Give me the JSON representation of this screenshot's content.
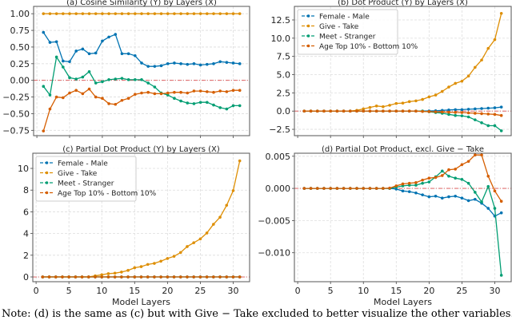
{
  "caption": "Note: (d) is the same as (c) but with Give − Take excluded to better visualize the other variables.",
  "colors": {
    "Female - Male": "#0173b2",
    "Give - Take": "#de8f05",
    "Meet - Stranger": "#029e73",
    "Age Top 10% - Bottom 10%": "#d55e00",
    "zero_line": "#d62728"
  },
  "chart_data": [
    {
      "id": "a",
      "type": "line",
      "title": "(a) Cosine Similarity (Y) by Layers (X)",
      "xlabel": "",
      "ylabel": "",
      "xlim": [
        -0.5,
        32.5
      ],
      "ylim": [
        -0.83,
        1.11
      ],
      "grid": true,
      "legend": null,
      "xticks": [
        0,
        5,
        10,
        15,
        20,
        25,
        30
      ],
      "xtick_labels_shown": false,
      "yticks": [
        -0.75,
        -0.5,
        -0.25,
        0,
        0.25,
        0.5,
        0.75,
        1.0
      ],
      "ytick_labels": [
        "−0.75",
        "−0.50",
        "−0.25",
        "0.00",
        "0.25",
        "0.50",
        "0.75",
        "1.00"
      ],
      "x": [
        1,
        2,
        3,
        4,
        5,
        6,
        7,
        8,
        9,
        10,
        11,
        12,
        13,
        14,
        15,
        16,
        17,
        18,
        19,
        20,
        21,
        22,
        23,
        24,
        25,
        26,
        27,
        28,
        29,
        30,
        31
      ],
      "series": [
        {
          "name": "Female - Male",
          "values": [
            0.72,
            0.57,
            0.58,
            0.29,
            0.28,
            0.44,
            0.47,
            0.4,
            0.41,
            0.59,
            0.65,
            0.69,
            0.4,
            0.4,
            0.37,
            0.26,
            0.21,
            0.21,
            0.22,
            0.25,
            0.26,
            0.25,
            0.24,
            0.25,
            0.23,
            0.24,
            0.25,
            0.28,
            0.27,
            0.26,
            0.25
          ]
        },
        {
          "name": "Give - Take",
          "values": [
            1,
            1,
            1,
            1,
            1,
            1,
            1,
            1,
            1,
            1,
            1,
            1,
            1,
            1,
            1,
            1,
            1,
            1,
            1,
            1,
            1,
            1,
            1,
            1,
            1,
            1,
            1,
            1,
            1,
            1,
            1
          ]
        },
        {
          "name": "Meet - Stranger",
          "values": [
            -0.09,
            -0.22,
            0.35,
            0.2,
            0.04,
            0.02,
            0.05,
            0.13,
            -0.04,
            -0.02,
            0.01,
            0.02,
            0.03,
            0.01,
            0.01,
            0.01,
            -0.04,
            -0.1,
            -0.19,
            -0.22,
            -0.27,
            -0.31,
            -0.34,
            -0.35,
            -0.33,
            -0.33,
            -0.37,
            -0.41,
            -0.43,
            -0.38,
            -0.38
          ]
        },
        {
          "name": "Age Top 10% - Bottom 10%",
          "values": [
            -0.76,
            -0.43,
            -0.25,
            -0.26,
            -0.19,
            -0.15,
            -0.2,
            -0.13,
            -0.25,
            -0.27,
            -0.35,
            -0.36,
            -0.3,
            -0.27,
            -0.21,
            -0.19,
            -0.18,
            -0.2,
            -0.2,
            -0.19,
            -0.18,
            -0.18,
            -0.19,
            -0.16,
            -0.16,
            -0.17,
            -0.18,
            -0.16,
            -0.17,
            -0.15,
            -0.15
          ]
        }
      ]
    },
    {
      "id": "b",
      "type": "line",
      "title": "(b) Dot Product (Y) by Layers (X)",
      "xlabel": "",
      "ylabel": "",
      "xlim": [
        -0.5,
        32.5
      ],
      "ylim": [
        -3.37,
        14.36
      ],
      "grid": true,
      "legend": "top-left",
      "xticks": [
        0,
        5,
        10,
        15,
        20,
        25,
        30
      ],
      "xtick_labels_shown": false,
      "yticks": [
        -2.5,
        0,
        2.5,
        5,
        7.5,
        10,
        12.5
      ],
      "ytick_labels": [
        "−2.5",
        "0.0",
        "2.5",
        "5.0",
        "7.5",
        "10.0",
        "12.5"
      ],
      "x": [
        1,
        2,
        3,
        4,
        5,
        6,
        7,
        8,
        9,
        10,
        11,
        12,
        13,
        14,
        15,
        16,
        17,
        18,
        19,
        20,
        21,
        22,
        23,
        24,
        25,
        26,
        27,
        28,
        29,
        30,
        31
      ],
      "series": [
        {
          "name": "Female - Male",
          "values": [
            0,
            0,
            0,
            0,
            0,
            0,
            0,
            0,
            0,
            0,
            0,
            0,
            0,
            0,
            0,
            0,
            0,
            0,
            0,
            0.02,
            0.05,
            0.1,
            0.15,
            0.2,
            0.2,
            0.25,
            0.3,
            0.35,
            0.4,
            0.45,
            0.55
          ]
        },
        {
          "name": "Give - Take",
          "values": [
            0,
            0,
            0,
            0,
            0,
            0,
            0,
            0,
            0.1,
            0.3,
            0.5,
            0.7,
            0.6,
            0.8,
            1.05,
            1.1,
            1.3,
            1.4,
            1.6,
            1.95,
            2.2,
            2.7,
            3.3,
            3.8,
            4.1,
            4.8,
            6.0,
            7.0,
            8.6,
            9.8,
            13.4
          ]
        },
        {
          "name": "Meet - Stranger",
          "values": [
            0,
            0,
            0,
            0,
            0,
            0,
            0,
            0,
            0,
            0,
            0,
            0,
            0,
            0,
            0,
            0,
            0,
            0,
            0,
            -0.1,
            -0.2,
            -0.3,
            -0.45,
            -0.6,
            -0.65,
            -0.8,
            -1.2,
            -1.6,
            -2.0,
            -2.0,
            -2.7
          ]
        },
        {
          "name": "Age Top 10% - Bottom 10%",
          "values": [
            0,
            0,
            0,
            0,
            0,
            0,
            0,
            0,
            0,
            0,
            0,
            0,
            0,
            0,
            0,
            0,
            0,
            0,
            -0.05,
            -0.07,
            -0.1,
            -0.12,
            -0.15,
            -0.18,
            -0.2,
            -0.25,
            -0.3,
            -0.35,
            -0.4,
            -0.45,
            -0.6
          ]
        }
      ]
    },
    {
      "id": "c",
      "type": "line",
      "title": "(c) Partial Dot Product (Y) by Layers (X)",
      "xlabel": "Model Layers",
      "ylabel": "",
      "xlim": [
        -0.5,
        32.5
      ],
      "ylim": [
        -0.44,
        11.4
      ],
      "grid": true,
      "legend": "top-left",
      "xticks": [
        0,
        5,
        10,
        15,
        20,
        25,
        30
      ],
      "xtick_labels_shown": true,
      "xtick_labels": [
        "0",
        "5",
        "10",
        "15",
        "20",
        "25",
        "30"
      ],
      "yticks": [
        0,
        2,
        4,
        6,
        8,
        10
      ],
      "ytick_labels": [
        "0",
        "2",
        "4",
        "6",
        "8",
        "10"
      ],
      "x": [
        1,
        2,
        3,
        4,
        5,
        6,
        7,
        8,
        9,
        10,
        11,
        12,
        13,
        14,
        15,
        16,
        17,
        18,
        19,
        20,
        21,
        22,
        23,
        24,
        25,
        26,
        27,
        28,
        29,
        30,
        31
      ],
      "series": [
        {
          "name": "Female - Male",
          "values": [
            0,
            0,
            0,
            0,
            0,
            0,
            0,
            0,
            0,
            0,
            0,
            0,
            0,
            0,
            0,
            0,
            0,
            0,
            0,
            0,
            0,
            0,
            0,
            0,
            0,
            0,
            0,
            0,
            0,
            0,
            0
          ]
        },
        {
          "name": "Give - Take",
          "values": [
            0,
            0,
            0,
            0,
            0,
            0,
            0,
            0,
            0.1,
            0.2,
            0.3,
            0.35,
            0.45,
            0.6,
            0.85,
            0.95,
            1.15,
            1.25,
            1.45,
            1.7,
            1.9,
            2.25,
            2.8,
            3.15,
            3.5,
            4.05,
            4.85,
            5.5,
            6.6,
            7.95,
            10.7
          ]
        },
        {
          "name": "Meet - Stranger",
          "values": [
            0,
            0,
            0,
            0,
            0,
            0,
            0,
            0,
            0,
            0,
            0,
            0,
            0,
            0,
            0,
            0,
            0,
            0,
            0,
            0,
            0,
            0,
            0,
            0,
            0,
            0,
            0,
            0,
            0,
            0,
            0
          ]
        },
        {
          "name": "Age Top 10% - Bottom 10%",
          "values": [
            0,
            0,
            0,
            0,
            0,
            0,
            0,
            0,
            0,
            0,
            0,
            0,
            0,
            0,
            0,
            0,
            0,
            0,
            0,
            0,
            0,
            0,
            0,
            0,
            0,
            0,
            0,
            0,
            0,
            0,
            0
          ]
        }
      ]
    },
    {
      "id": "d",
      "type": "line",
      "title": "(d) Partial Dot Product, excl. Give − Take",
      "xlabel": "Model Layers",
      "ylabel": "",
      "xlim": [
        -0.5,
        32.5
      ],
      "ylim": [
        -0.0145,
        0.00547
      ],
      "grid": true,
      "legend": null,
      "xticks": [
        0,
        5,
        10,
        15,
        20,
        25,
        30
      ],
      "xtick_labels_shown": true,
      "xtick_labels": [
        "0",
        "5",
        "10",
        "15",
        "20",
        "25",
        "30"
      ],
      "yticks": [
        -0.01,
        -0.005,
        0,
        0.005
      ],
      "ytick_labels": [
        "−0.010",
        "−0.005",
        "0.000",
        "0.005"
      ],
      "x": [
        1,
        2,
        3,
        4,
        5,
        6,
        7,
        8,
        9,
        10,
        11,
        12,
        13,
        14,
        15,
        16,
        17,
        18,
        19,
        20,
        21,
        22,
        23,
        24,
        25,
        26,
        27,
        28,
        29,
        30,
        31
      ],
      "series": [
        {
          "name": "Female - Male",
          "values": [
            0,
            0,
            0,
            0,
            0,
            0,
            0,
            0,
            0,
            0,
            0,
            0,
            0,
            0,
            -0.0001,
            -0.0004,
            -0.0005,
            -0.0007,
            -0.001,
            -0.0013,
            -0.0012,
            -0.0015,
            -0.0013,
            -0.0012,
            -0.0015,
            -0.0019,
            -0.0017,
            -0.0023,
            -0.0031,
            -0.0043,
            -0.0038
          ]
        },
        {
          "name": "Meet - Stranger",
          "values": [
            0,
            0,
            0,
            0,
            0,
            0,
            0,
            0,
            0,
            0,
            0,
            0,
            0,
            0,
            0.0002,
            0.0004,
            0.0005,
            0.0005,
            0.0008,
            0.001,
            0.0018,
            0.0027,
            0.0019,
            0.0016,
            0.0014,
            0.0008,
            -0.0006,
            -0.0021,
            0.0003,
            -0.0031,
            -0.0135
          ]
        },
        {
          "name": "Age Top 10% - Bottom 10%",
          "values": [
            0,
            0,
            0,
            0,
            0,
            0,
            0,
            0,
            0,
            0,
            0,
            0,
            0,
            5e-05,
            0.0004,
            0.0007,
            0.0008,
            0.0009,
            0.0013,
            0.0016,
            0.0017,
            0.002,
            0.0029,
            0.003,
            0.0037,
            0.0042,
            0.0052,
            0.0052,
            0.0019,
            -0.0004,
            -0.002
          ]
        }
      ]
    }
  ]
}
